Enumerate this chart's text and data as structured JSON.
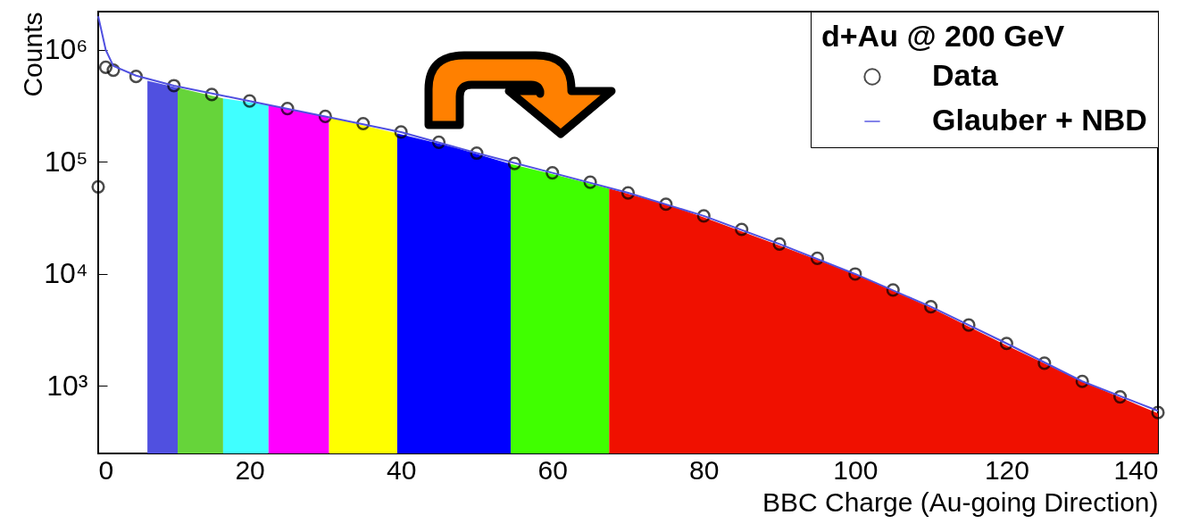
{
  "chart_data": {
    "type": "scatter",
    "xlabel": "BBC Charge (Au-going Direction)",
    "ylabel": "Counts",
    "legend_title": "d+Au @ 200 GeV",
    "log": true,
    "grid": false,
    "legend": "top right",
    "line_style": "solid",
    "xlim": [
      0,
      140
    ],
    "xticks": [
      0,
      20,
      40,
      60,
      80,
      100,
      120,
      140
    ],
    "ylim": [
      250,
      2200000
    ],
    "yticks": [
      {
        "value": 1000,
        "label": "10³"
      },
      {
        "value": 10000,
        "label": "10⁴"
      },
      {
        "value": 100000,
        "label": "10⁵"
      },
      {
        "value": 1000000,
        "label": "10⁶"
      }
    ],
    "series": [
      {
        "type": "area",
        "color": "#5050e0",
        "x": [
          6.5,
          10.5
        ],
        "values": [
          530000,
          460000
        ]
      },
      {
        "type": "area",
        "color": "#66d43a",
        "x": [
          10.5,
          16.5
        ],
        "values": [
          460000,
          370000
        ]
      },
      {
        "type": "area",
        "color": "#40ffff",
        "x": [
          16.5,
          22.5
        ],
        "values": [
          370000,
          320000
        ]
      },
      {
        "type": "area",
        "color": "#ff00ff",
        "x": [
          22.5,
          30.5
        ],
        "values": [
          320000,
          250000
        ]
      },
      {
        "type": "area",
        "color": "#ffff00",
        "x": [
          30.5,
          39.5
        ],
        "values": [
          250000,
          180000
        ]
      },
      {
        "type": "area",
        "color": "#0000ff",
        "x": [
          39.5,
          47,
          54.5
        ],
        "values": [
          180000,
          135000,
          96000
        ]
      },
      {
        "type": "area",
        "color": "#40ff00",
        "x": [
          54.5,
          60,
          67.5
        ],
        "values": [
          96000,
          78000,
          58000
        ]
      },
      {
        "type": "area",
        "color": "#f01000",
        "x": [
          67.5,
          75,
          80,
          90,
          100,
          110,
          120,
          130,
          140
        ],
        "values": [
          58000,
          42000,
          32000,
          18000,
          10000,
          5000,
          2300,
          1100,
          570
        ]
      },
      {
        "name": "Data",
        "marker": "circle",
        "color": "#000000",
        "x": [
          0,
          1,
          2,
          5,
          10,
          15,
          20,
          25,
          30,
          35,
          40,
          45,
          50,
          55,
          60,
          65,
          70,
          75,
          80,
          85,
          90,
          95,
          100,
          105,
          110,
          115,
          120,
          125,
          130,
          135,
          140
        ],
        "values": [
          60000,
          700000,
          660000,
          580000,
          480000,
          400000,
          350000,
          300000,
          255000,
          220000,
          185000,
          150000,
          120000,
          97000,
          80000,
          66000,
          53000,
          42000,
          33000,
          25000,
          18500,
          13800,
          10000,
          7200,
          5100,
          3500,
          2400,
          1600,
          1100,
          800,
          580
        ]
      },
      {
        "type": "line",
        "name": "Glauber + NBD",
        "color": "#5050e0",
        "x": [
          0,
          1,
          2,
          5,
          10,
          20,
          30,
          40,
          50,
          60,
          70,
          80,
          90,
          100,
          110,
          120,
          130,
          140
        ],
        "values": [
          2000000,
          1000000,
          720000,
          590000,
          480000,
          350000,
          255000,
          185000,
          120000,
          80000,
          53000,
          33000,
          18500,
          10000,
          5100,
          2400,
          1100,
          600
        ]
      }
    ]
  }
}
